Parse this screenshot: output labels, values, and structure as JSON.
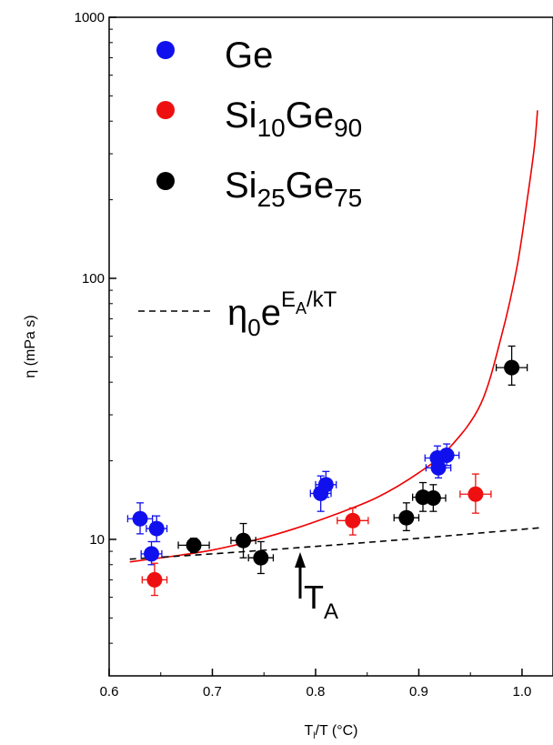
{
  "chart_data": {
    "type": "scatter",
    "yscale": "log",
    "xlim": [
      0.6,
      1.03
    ],
    "ylim": [
      3,
      1000
    ],
    "xticks": [
      "0.6",
      "0.7",
      "0.8",
      "0.9",
      "1.0"
    ],
    "yticks": [
      "10",
      "100",
      "1000"
    ],
    "xlabel": {
      "main": "T",
      "sub": "l",
      "rest": "/T (°C)"
    },
    "ylabel": "η (mPa s)",
    "legend": [
      {
        "label": "Ge",
        "color": "#1010ee"
      },
      {
        "label_parts": [
          "Si",
          "10",
          "Ge",
          "90"
        ],
        "color": "#ee1010"
      },
      {
        "label_parts": [
          "Si",
          "25",
          "Ge",
          "75"
        ],
        "color": "#000000"
      }
    ],
    "dashed_label": {
      "base": "η",
      "sub": "0",
      "e": "e",
      "exp": "E",
      "exp_sub": "A",
      "exp_rest": "/kT"
    },
    "arrow_label": {
      "main": "T",
      "sub": "A"
    },
    "series": [
      {
        "name": "Ge",
        "color": "#1010ee",
        "points": [
          {
            "x": 0.63,
            "y": 12.0,
            "xerr": 0.012,
            "yerr": [
              10.5,
              13.8
            ]
          },
          {
            "x": 0.646,
            "y": 11.0,
            "xerr": 0.01,
            "yerr": [
              9.8,
              12.3
            ]
          },
          {
            "x": 0.641,
            "y": 8.8,
            "xerr": 0.01,
            "yerr": [
              8.0,
              9.8
            ]
          },
          {
            "x": 0.805,
            "y": 15.0,
            "xerr": 0.01,
            "yerr": [
              12.8,
              17.5
            ]
          },
          {
            "x": 0.81,
            "y": 16.2,
            "xerr": 0.01,
            "yerr": [
              14.5,
              18.2
            ]
          },
          {
            "x": 0.918,
            "y": 20.5,
            "xerr": 0.012,
            "yerr": [
              18.5,
              22.8
            ]
          },
          {
            "x": 0.927,
            "y": 21.0,
            "xerr": 0.012,
            "yerr": [
              19.2,
              23.2
            ]
          },
          {
            "x": 0.919,
            "y": 18.8,
            "xerr": 0.012,
            "yerr": [
              17.2,
              20.5
            ]
          }
        ]
      },
      {
        "name": "Si10Ge90",
        "color": "#ee1010",
        "points": [
          {
            "x": 0.644,
            "y": 7.0,
            "xerr": 0.012,
            "yerr": [
              6.1,
              8.1
            ]
          },
          {
            "x": 0.836,
            "y": 11.8,
            "xerr": 0.015,
            "yerr": [
              10.4,
              13.2
            ]
          },
          {
            "x": 0.955,
            "y": 14.9,
            "xerr": 0.015,
            "yerr": [
              12.6,
              17.8
            ]
          }
        ]
      },
      {
        "name": "Si25Ge75",
        "color": "#000000",
        "points": [
          {
            "x": 0.682,
            "y": 9.5,
            "xerr": 0.015,
            "yerr": [
              8.9,
              10.1
            ]
          },
          {
            "x": 0.73,
            "y": 9.9,
            "xerr": 0.012,
            "yerr": [
              8.5,
              11.5
            ]
          },
          {
            "x": 0.747,
            "y": 8.5,
            "xerr": 0.012,
            "yerr": [
              7.4,
              9.8
            ]
          },
          {
            "x": 0.888,
            "y": 12.1,
            "xerr": 0.012,
            "yerr": [
              10.8,
              13.8
            ]
          },
          {
            "x": 0.904,
            "y": 14.5,
            "xerr": 0.01,
            "yerr": [
              12.8,
              16.5
            ]
          },
          {
            "x": 0.914,
            "y": 14.4,
            "xerr": 0.012,
            "yerr": [
              12.8,
              16.2
            ]
          },
          {
            "x": 0.99,
            "y": 45.5,
            "xerr": 0.015,
            "yerr": [
              39.0,
              55.0
            ]
          }
        ]
      }
    ],
    "curves": [
      {
        "style": "solid",
        "color": "#ee0000",
        "points": [
          [
            0.62,
            8.2
          ],
          [
            0.66,
            8.6
          ],
          [
            0.7,
            9.1
          ],
          [
            0.74,
            9.9
          ],
          [
            0.78,
            11.0
          ],
          [
            0.82,
            12.5
          ],
          [
            0.86,
            14.5
          ],
          [
            0.9,
            18.0
          ],
          [
            0.93,
            22.5
          ],
          [
            0.96,
            33.0
          ],
          [
            0.98,
            60.0
          ],
          [
            0.995,
            110.0
          ],
          [
            1.005,
            200.0
          ],
          [
            1.012,
            320.0
          ],
          [
            1.015,
            440.0
          ]
        ]
      },
      {
        "style": "dashed",
        "color": "#000000",
        "points": [
          [
            0.62,
            8.4
          ],
          [
            0.7,
            8.8
          ],
          [
            0.8,
            9.4
          ],
          [
            0.9,
            10.1
          ],
          [
            1.02,
            11.1
          ]
        ]
      }
    ]
  }
}
